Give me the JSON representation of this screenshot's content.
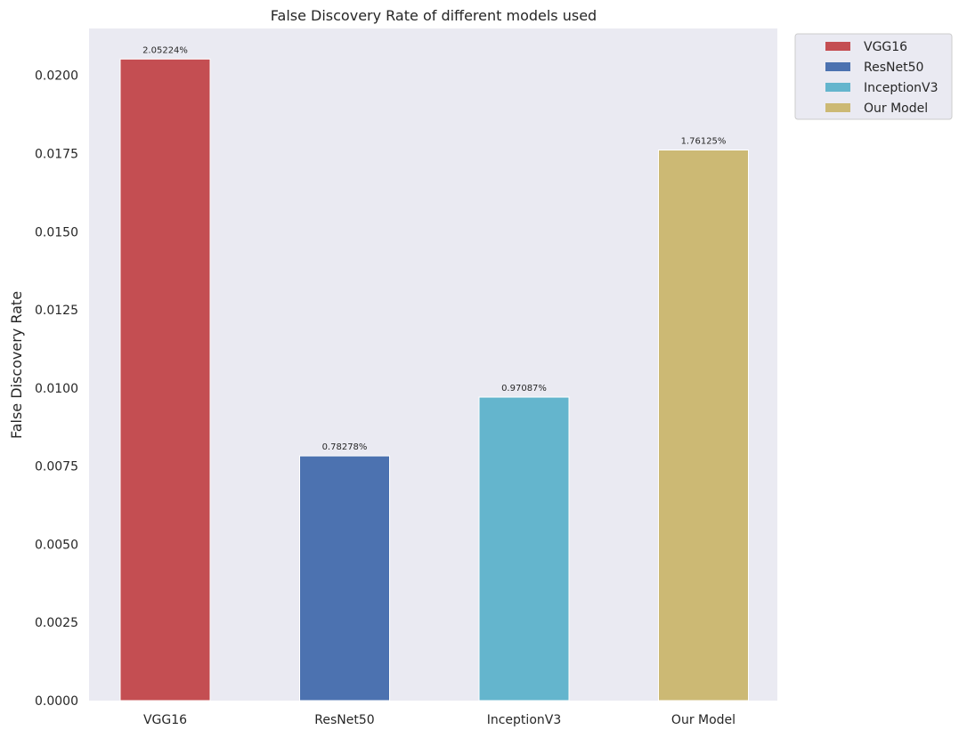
{
  "chart_data": {
    "type": "bar",
    "title": "False Discovery Rate of different models used",
    "xlabel": "",
    "ylabel": "False Discovery Rate",
    "categories": [
      "VGG16",
      "ResNet50",
      "InceptionV3",
      "Our Model"
    ],
    "values": [
      0.0205224,
      0.0078278,
      0.0097087,
      0.0176125
    ],
    "data_labels": [
      "2.05224%",
      "0.78278%",
      "0.97087%",
      "1.76125%"
    ],
    "colors": [
      "#c44e52",
      "#4c72b0",
      "#64b5cd",
      "#ccb974"
    ],
    "ylim": [
      0,
      0.0215
    ],
    "yticks": [
      0,
      0.0025,
      0.005,
      0.0075,
      0.01,
      0.0125,
      0.015,
      0.0175,
      0.02
    ],
    "ytick_labels": [
      "0.0000",
      "0.0025",
      "0.0050",
      "0.0075",
      "0.0100",
      "0.0125",
      "0.0150",
      "0.0175",
      "0.0200"
    ],
    "grid": false,
    "legend": {
      "placement": "outside-top-right",
      "entries": [
        "VGG16",
        "ResNet50",
        "InceptionV3",
        "Our Model"
      ]
    },
    "background_color": "#eaeaf2"
  }
}
